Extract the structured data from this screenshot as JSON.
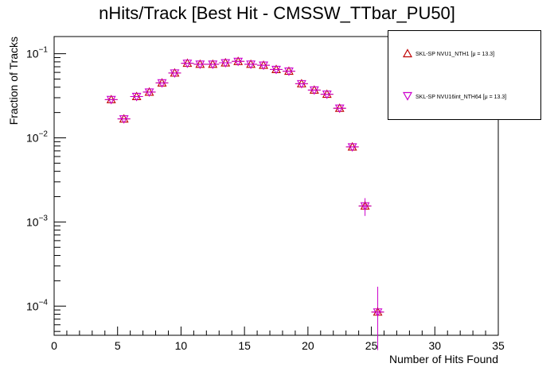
{
  "chart_data": {
    "type": "scatter",
    "title": "nHits/Track [Best Hit - CMSSW_TTbar_PU50]",
    "xlabel": "Number of Hits Found",
    "ylabel": "Fraction of Tracks",
    "xlim": [
      0,
      35
    ],
    "ylim": [
      4.5e-05,
      0.16
    ],
    "yscale": "log",
    "xticks": [
      "0",
      "5",
      "10",
      "15",
      "20",
      "25",
      "30",
      "35"
    ],
    "yticks": [
      {
        "value": 0.1,
        "base": "10",
        "exp": "−1"
      },
      {
        "value": 0.01,
        "base": "10",
        "exp": "−2"
      },
      {
        "value": 0.001,
        "base": "10",
        "exp": "−3"
      },
      {
        "value": 0.0001,
        "base": "10",
        "exp": "−4"
      }
    ],
    "legend_position": "top-right",
    "series": [
      {
        "name": "SKL-SP NVU1_NTH1 [μ = 13.3]",
        "marker": "triangle-up",
        "color": "#c00000",
        "x": [
          4.5,
          5.5,
          6.5,
          7.5,
          8.5,
          9.5,
          10.5,
          11.5,
          12.5,
          13.5,
          14.5,
          15.5,
          16.5,
          17.5,
          18.5,
          19.5,
          20.5,
          21.5,
          22.5,
          23.5,
          24.5,
          25.5
        ],
        "y": [
          0.0285,
          0.0168,
          0.031,
          0.035,
          0.045,
          0.059,
          0.077,
          0.075,
          0.075,
          0.078,
          0.081,
          0.075,
          0.073,
          0.065,
          0.062,
          0.044,
          0.037,
          0.033,
          0.0225,
          0.0078,
          0.00155,
          8.5e-05
        ]
      },
      {
        "name": "SKL-SP NVU16int_NTH64 [μ = 13.3]",
        "marker": "triangle-down",
        "color": "#cc00cc",
        "x": [
          4.5,
          5.5,
          6.5,
          7.5,
          8.5,
          9.5,
          10.5,
          11.5,
          12.5,
          13.5,
          14.5,
          15.5,
          16.5,
          17.5,
          18.5,
          19.5,
          20.5,
          21.5,
          22.5,
          23.5,
          24.5,
          25.5
        ],
        "y": [
          0.0285,
          0.0168,
          0.031,
          0.035,
          0.045,
          0.059,
          0.077,
          0.075,
          0.075,
          0.078,
          0.081,
          0.075,
          0.073,
          0.065,
          0.062,
          0.044,
          0.037,
          0.033,
          0.0225,
          0.0078,
          0.00155,
          8.5e-05
        ]
      }
    ],
    "error_bars": [
      {
        "x": 24.5,
        "low": 0.00118,
        "high": 0.00192
      },
      {
        "x": 25.5,
        "low": 3e-05,
        "high": 0.00017
      }
    ]
  }
}
